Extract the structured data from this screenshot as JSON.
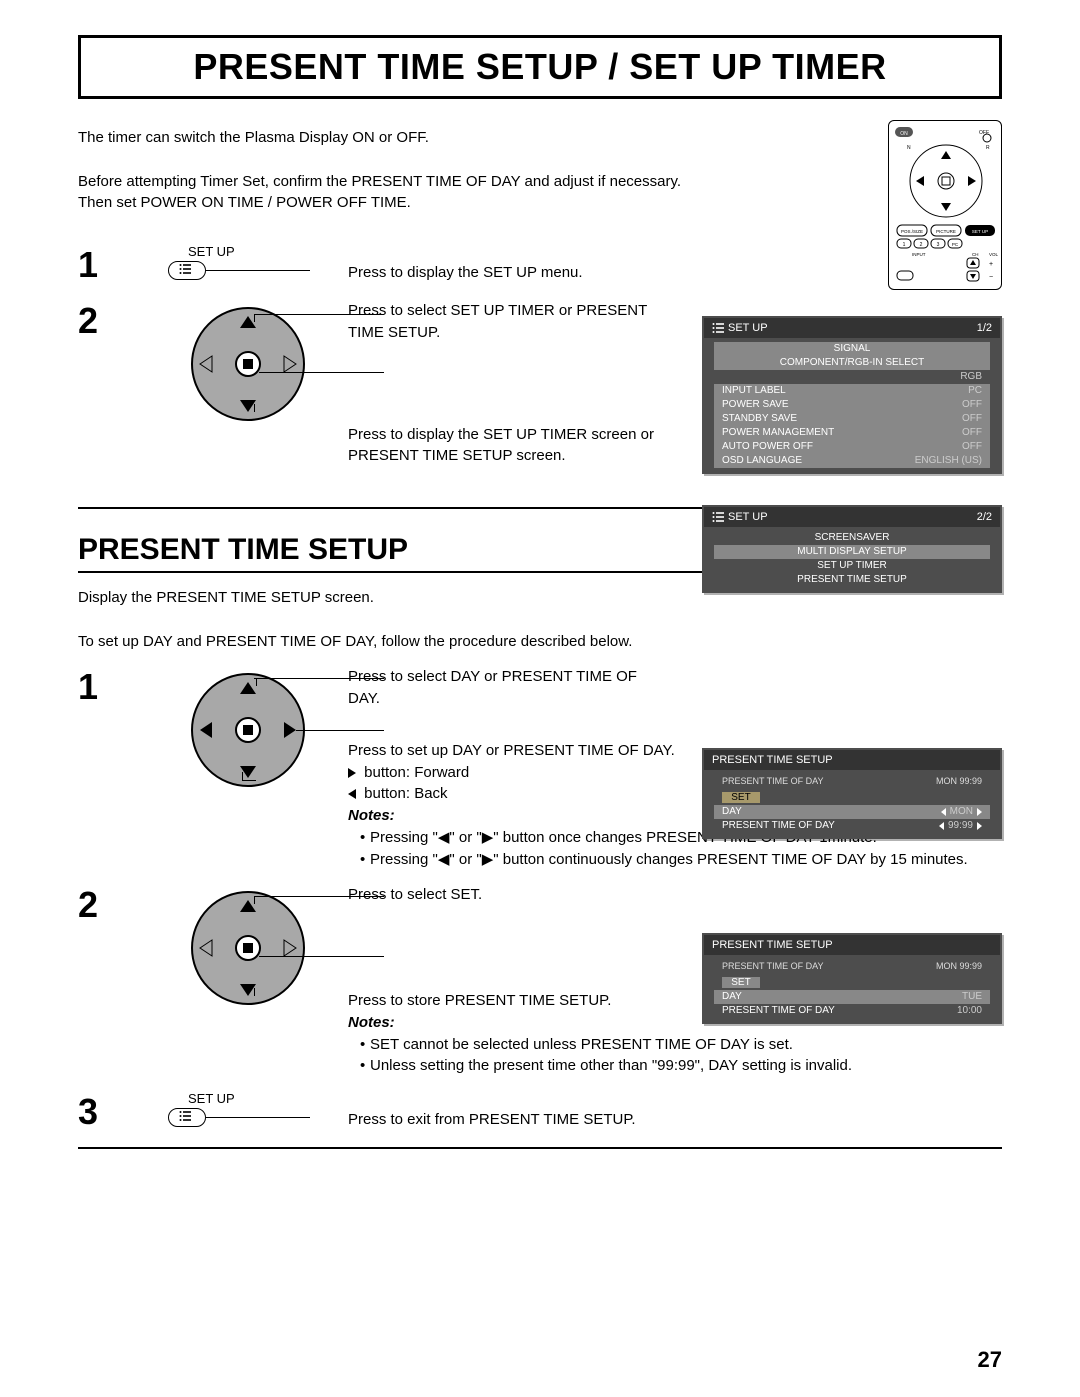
{
  "page_number": "27",
  "title": "PRESENT TIME SETUP / SET UP TIMER",
  "intro_lines": [
    "The timer can switch the Plasma Display ON or OFF.",
    "",
    "Before attempting Timer Set, confirm the PRESENT TIME OF DAY and adjust if necessary.",
    "Then set POWER ON TIME / POWER OFF TIME."
  ],
  "step1": {
    "num": "1",
    "btn_label": "SET UP",
    "desc": "Press to display the SET UP menu."
  },
  "step2": {
    "num": "2",
    "desc_a": "Press to select SET UP TIMER or PRESENT TIME SETUP.",
    "desc_b": "Press to display the SET UP TIMER screen or PRESENT TIME SETUP screen."
  },
  "osd1": {
    "title": "SET UP",
    "page": "1/2",
    "rows": [
      {
        "l": "SIGNAL",
        "r": "",
        "center": true
      },
      {
        "l": "COMPONENT/RGB-IN SELECT",
        "r": "",
        "bg": true,
        "center2": true
      },
      {
        "l": "",
        "r": "RGB"
      },
      {
        "l": "INPUT LABEL",
        "r": "PC",
        "bg": true
      },
      {
        "l": "POWER SAVE",
        "r": "OFF",
        "bg": true
      },
      {
        "l": "STANDBY SAVE",
        "r": "OFF",
        "bg": true
      },
      {
        "l": "POWER MANAGEMENT",
        "r": "OFF",
        "bg": true
      },
      {
        "l": "AUTO POWER OFF",
        "r": "OFF",
        "bg": true
      },
      {
        "l": "OSD LANGUAGE",
        "r": "ENGLISH (US)",
        "bg": true
      }
    ]
  },
  "osd2": {
    "title": "SET UP",
    "page": "2/2",
    "rows": [
      {
        "l": "SCREENSAVER",
        "center2": true
      },
      {
        "l": "MULTI DISPLAY SETUP",
        "bg": true,
        "center2": true
      },
      {
        "l": "SET UP TIMER",
        "center2": true
      },
      {
        "l": "PRESENT TIME SETUP",
        "center2": true
      }
    ]
  },
  "section2_title": "PRESENT TIME SETUP",
  "section2_intro": [
    "Display the PRESENT TIME SETUP screen.",
    "",
    "To set up DAY and PRESENT TIME OF DAY, follow the procedure described below."
  ],
  "s2_step1": {
    "num": "1",
    "line1": "Press to select DAY or PRESENT TIME OF DAY.",
    "line2": "Press to set up DAY or PRESENT TIME OF DAY.",
    "fwd": " button: Forward",
    "back": " button: Back",
    "notes_label": "Notes:",
    "notes": [
      "Pressing \"◀\" or \"▶\" button once changes PRESENT TIME OF DAY 1minute.",
      "Pressing \"◀\" or \"▶\" button continuously changes PRESENT TIME OF DAY by 15 minutes."
    ]
  },
  "s2_step2": {
    "num": "2",
    "line1": "Press to select SET.",
    "line2": "Press to store PRESENT TIME SETUP.",
    "notes_label": "Notes:",
    "notes": [
      "SET cannot be selected unless PRESENT TIME OF DAY is set.",
      "Unless setting the present time other than \"99:99\", DAY setting is invalid."
    ]
  },
  "s2_step3": {
    "num": "3",
    "btn_label": "SET UP",
    "desc": "Press to exit from PRESENT TIME SETUP."
  },
  "osd3": {
    "title": "PRESENT  TIME SETUP",
    "sub_l": "PRESENT  TIME OF DAY",
    "sub_r": "MON   99:99",
    "set": "SET",
    "rows": [
      {
        "l": "DAY",
        "r": "MON",
        "arrows": true,
        "bg": true
      },
      {
        "l": "PRESENT  TIME OF DAY",
        "r": "99:99",
        "arrows": true
      }
    ]
  },
  "osd4": {
    "title": "PRESENT  TIME SETUP",
    "sub_l": "PRESENT  TIME OF DAY",
    "sub_r": "MON   99:99",
    "set": "SET",
    "rows": [
      {
        "l": "DAY",
        "r": "TUE",
        "bg": true
      },
      {
        "l": "PRESENT TIME OF DAY",
        "r": "10:00"
      }
    ]
  },
  "colors": {
    "osd_bg": "#4d4d4d",
    "osd_row_bg": "#888",
    "osd_border": "#4d4d4d",
    "dpad_fill": "#a8a8a8"
  }
}
